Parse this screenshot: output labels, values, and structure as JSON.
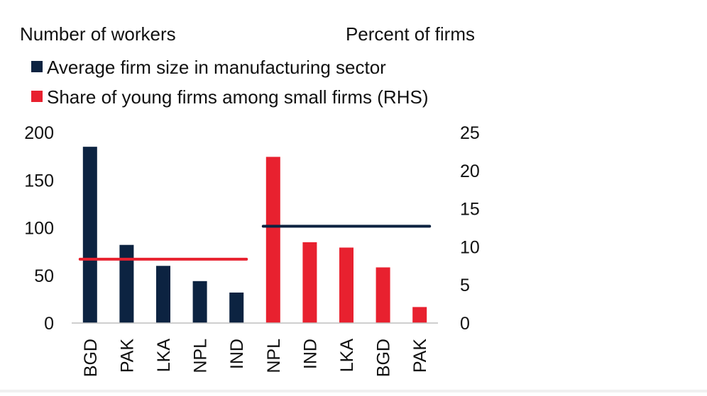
{
  "chart_data": {
    "type": "bar",
    "left_axis_title": "Number of workers",
    "right_axis_title": "Percent of firms",
    "legend": [
      {
        "label": "Average firm size in manufacturing sector",
        "color": "#0c2341"
      },
      {
        "label": "Share of young firms among small firms (RHS)",
        "color": "#e8212f"
      }
    ],
    "left_axis": {
      "ticks": [
        "0",
        "50",
        "100",
        "150",
        "200"
      ],
      "ylim": [
        0,
        200
      ]
    },
    "right_axis": {
      "ticks": [
        "0",
        "5",
        "10",
        "15",
        "20",
        "25"
      ],
      "ylim": [
        0,
        25
      ]
    },
    "groups": [
      {
        "series": "Average firm size in manufacturing sector",
        "axis": "left",
        "color": "#0c2341",
        "categories": [
          "BGD",
          "PAK",
          "LKA",
          "NPL",
          "IND"
        ],
        "values": [
          185,
          82,
          60,
          44,
          32
        ],
        "average": 67,
        "average_color": "#e8212f"
      },
      {
        "series": "Share of young firms among small firms (RHS)",
        "axis": "right",
        "color": "#e8212f",
        "categories": [
          "NPL",
          "IND",
          "LKA",
          "BGD",
          "PAK"
        ],
        "values": [
          21.8,
          10.6,
          9.9,
          7.3,
          2.1
        ],
        "average": 12.7,
        "average_color": "#0c2341"
      }
    ]
  }
}
